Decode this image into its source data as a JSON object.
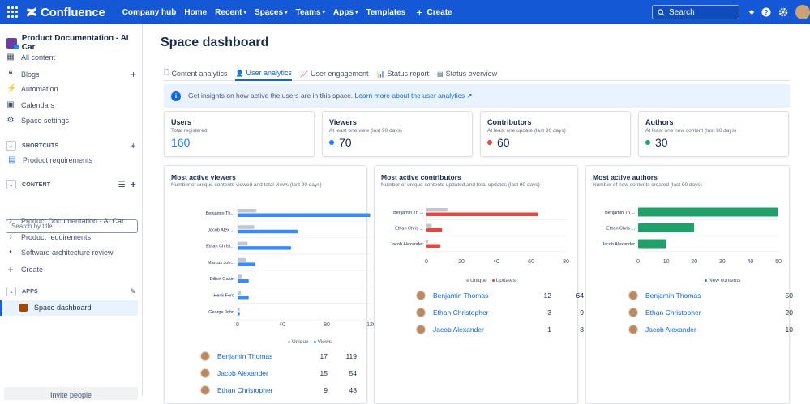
{
  "topbar": {
    "app_name": "Confluence",
    "nav": [
      {
        "label": "Company hub",
        "dropdown": false
      },
      {
        "label": "Home",
        "dropdown": false
      },
      {
        "label": "Recent",
        "dropdown": true
      },
      {
        "label": "Spaces",
        "dropdown": true
      },
      {
        "label": "Teams",
        "dropdown": true
      },
      {
        "label": "Apps",
        "dropdown": true
      },
      {
        "label": "Templates",
        "dropdown": false
      }
    ],
    "create_label": "Create",
    "search_placeholder": "Search"
  },
  "sidebar": {
    "space_name": "Product Documentation - AI Car",
    "items": [
      {
        "label": "All content",
        "icon": "all-content-icon"
      },
      {
        "label": "Blogs",
        "icon": "quote-icon"
      },
      {
        "label": "Automation",
        "icon": "bolt-icon"
      },
      {
        "label": "Calendars",
        "icon": "calendar-icon"
      },
      {
        "label": "Space settings",
        "icon": "gear-icon"
      }
    ],
    "shortcuts_label": "SHORTCUTS",
    "shortcut_item": "Product requirements",
    "content_label": "CONTENT",
    "search_placeholder": "Search by title",
    "tree": [
      "Product Documentation - AI Car",
      "Product requirements",
      "Software architecture review"
    ],
    "create_label": "Create",
    "apps_label": "APPS",
    "app_item": "Space dashboard",
    "invite_label": "Invite people"
  },
  "main": {
    "title": "Space dashboard",
    "tabs": [
      {
        "label": "Content analytics",
        "active": false
      },
      {
        "label": "User analytics",
        "active": true
      },
      {
        "label": "User engagement",
        "active": false
      },
      {
        "label": "Status report",
        "active": false
      },
      {
        "label": "Status overview",
        "active": false
      }
    ],
    "banner_text": "Get insights on how active the users are in this space.",
    "banner_link": "Learn more about the user analytics",
    "stats": [
      {
        "title": "Users",
        "subtitle": "Total registered",
        "value": "160",
        "color": ""
      },
      {
        "title": "Viewers",
        "subtitle": "At least one view (last 90 days)",
        "value": "70",
        "color": "#1d7afc"
      },
      {
        "title": "Contributors",
        "subtitle": "At least one update (last 90 days)",
        "value": "60",
        "color": "#e2483d"
      },
      {
        "title": "Authors",
        "subtitle": "At least one new content (last 90 days)",
        "value": "30",
        "color": "#22a06b"
      }
    ]
  },
  "chart_data": [
    {
      "type": "bar",
      "orientation": "horizontal",
      "title": "Most active viewers",
      "subtitle": "Number of unique contents viewed and total views (last 90 days)",
      "categories": [
        "Benjamin Th...",
        "Jacob Alex ...",
        "Ethan Christ...",
        "Marcus Joh...",
        "Dilbet Gabin",
        "Henk Ford",
        "George John"
      ],
      "series": [
        {
          "name": "Unique",
          "color": "#c1c7d0",
          "values": [
            17,
            15,
            9,
            8,
            4,
            3,
            2
          ]
        },
        {
          "name": "Views",
          "color": "#388bff",
          "values": [
            119,
            54,
            48,
            16,
            10,
            10,
            2
          ]
        }
      ],
      "xlim": [
        0,
        120
      ],
      "xticks": [
        0,
        40,
        80,
        120
      ],
      "grid": true,
      "legend": "bottom-right"
    },
    {
      "type": "bar",
      "orientation": "horizontal",
      "title": "Most active contributors",
      "subtitle": "Number of unique contents updated and total updates (last 90 days)",
      "categories": [
        "Benjamin Th ...",
        "Ethan Chris ...",
        "Jacob Alexander"
      ],
      "series": [
        {
          "name": "Unique",
          "color": "#c1c7d0",
          "values": [
            12,
            3,
            1
          ]
        },
        {
          "name": "Updates",
          "color": "#e2483d",
          "values": [
            64,
            9,
            8
          ]
        }
      ],
      "xlim": [
        0,
        80
      ],
      "xticks": [
        0,
        20,
        40,
        60,
        80
      ],
      "grid": true,
      "legend": "bottom-center"
    },
    {
      "type": "bar",
      "orientation": "horizontal",
      "title": "Most active authors",
      "subtitle": "Number of new contents created (last 90 days)",
      "categories": [
        "Benjamin Th ...",
        "Ethan Chris ...",
        "Jacob Alexander"
      ],
      "series": [
        {
          "name": "New contents",
          "color": "#22a06b",
          "values": [
            50,
            20,
            10
          ]
        }
      ],
      "xlim": [
        0,
        50
      ],
      "xticks": [
        0,
        10,
        20,
        30,
        40,
        50
      ],
      "grid": true,
      "legend": "bottom-center"
    }
  ],
  "tables": {
    "viewers": [
      {
        "name": "Benjamin Thomas",
        "a": "17",
        "b": "119"
      },
      {
        "name": "Jacob Alexander",
        "a": "15",
        "b": "54"
      },
      {
        "name": "Ethan Christopher",
        "a": "9",
        "b": "48"
      }
    ],
    "contributors": [
      {
        "name": "Benjamin Thomas",
        "a": "12",
        "b": "64"
      },
      {
        "name": "Ethan Christopher",
        "a": "3",
        "b": "9"
      },
      {
        "name": "Jacob Alexander",
        "a": "1",
        "b": "8"
      }
    ],
    "authors": [
      {
        "name": "Benjamin Thomas",
        "a": "50"
      },
      {
        "name": "Ethan Christopher",
        "a": "20"
      },
      {
        "name": "Jacob Alexander",
        "a": "10"
      }
    ]
  }
}
